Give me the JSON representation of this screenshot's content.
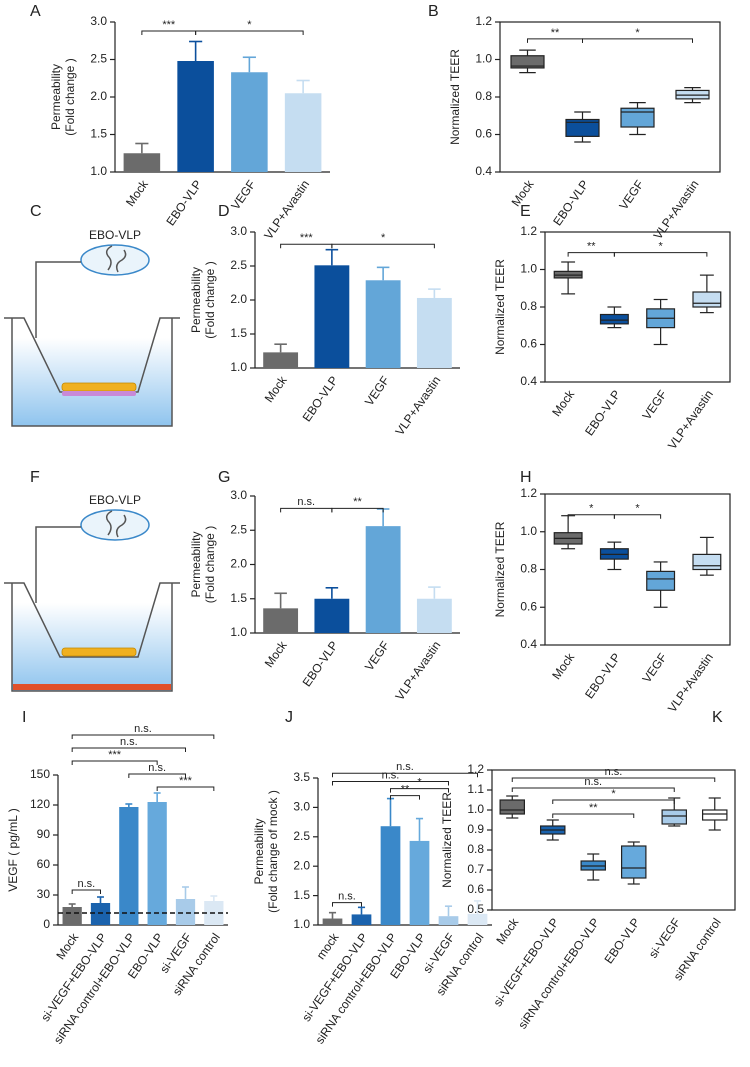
{
  "chart_data": [
    {
      "type": "bar",
      "panel": "A",
      "ylabel": [
        "Permeability",
        "(Fold change )"
      ],
      "categories": [
        "Mock",
        "EBO-VLP",
        "VEGF",
        "VLP+Avastin"
      ],
      "values": [
        1.25,
        2.48,
        2.33,
        2.05
      ],
      "errors": [
        0.13,
        0.26,
        0.2,
        0.17
      ],
      "colors": [
        "#6b6b6b",
        "#0b4f9c",
        "#63a6d8",
        "#c5ddf1"
      ],
      "ylim": [
        1,
        3
      ],
      "yticks": [
        {
          "value": 1,
          "label": "1.0"
        },
        1.5,
        {
          "value": 2,
          "label": "2.0"
        },
        2.5,
        {
          "value": 3,
          "label": "3.0"
        }
      ],
      "annotations": [
        {
          "from": "Mock",
          "to": "EBO-VLP",
          "y": 2.88,
          "text": "***"
        },
        {
          "from": "EBO-VLP",
          "to": "VLP+Avastin",
          "y": 2.88,
          "text": "*"
        }
      ]
    },
    {
      "type": "box",
      "panel": "B",
      "ylabel": "Normalized TEER",
      "categories": [
        "Mock",
        "EBO-VLP",
        "VEGF",
        "VLP+Avastin"
      ],
      "boxes": [
        {
          "min": 0.93,
          "q1": 0.955,
          "median": 0.965,
          "q3": 1.02,
          "max": 1.05
        },
        {
          "min": 0.56,
          "q1": 0.59,
          "median": 0.665,
          "q3": 0.68,
          "max": 0.72
        },
        {
          "min": 0.6,
          "q1": 0.64,
          "median": 0.72,
          "q3": 0.74,
          "max": 0.77
        },
        {
          "min": 0.77,
          "q1": 0.79,
          "median": 0.81,
          "q3": 0.835,
          "max": 0.85
        }
      ],
      "colors": [
        "#6b6b6b",
        "#0b4f9c",
        "#63a6d8",
        "#c5ddf1"
      ],
      "ylim": [
        0.4,
        1.2
      ],
      "yticks": [
        0.4,
        0.6,
        0.8,
        {
          "value": 1,
          "label": "1.0"
        },
        1.2
      ],
      "annotations": [
        {
          "from": "Mock",
          "to": "EBO-VLP",
          "y": 1.11,
          "text": "**"
        },
        {
          "from": "EBO-VLP",
          "to": "VLP+Avastin",
          "y": 1.11,
          "text": "*"
        }
      ]
    },
    {
      "type": "bar",
      "panel": "D",
      "ylabel": [
        "Permeability",
        "(Fold change )"
      ],
      "categories": [
        "Mock",
        "EBO-VLP",
        "VEGF",
        "VLP+Avastin"
      ],
      "values": [
        1.23,
        2.51,
        2.29,
        2.03
      ],
      "errors": [
        0.12,
        0.23,
        0.19,
        0.13
      ],
      "colors": [
        "#6b6b6b",
        "#0b4f9c",
        "#63a6d8",
        "#c5ddf1"
      ],
      "ylim": [
        1,
        3
      ],
      "yticks": [
        {
          "value": 1,
          "label": "1.0"
        },
        1.5,
        {
          "value": 2,
          "label": "2.0"
        },
        2.5,
        {
          "value": 3,
          "label": "3.0"
        }
      ],
      "annotations": [
        {
          "from": "Mock",
          "to": "EBO-VLP",
          "y": 2.82,
          "text": "***"
        },
        {
          "from": "EBO-VLP",
          "to": "VLP+Avastin",
          "y": 2.82,
          "text": "*"
        }
      ]
    },
    {
      "type": "box",
      "panel": "E",
      "ylabel": "Normalized TEER",
      "categories": [
        "Mock",
        "EBO-VLP",
        "VEGF",
        "VLP+Avastin"
      ],
      "boxes": [
        {
          "min": 0.87,
          "q1": 0.955,
          "median": 0.97,
          "q3": 0.99,
          "max": 1.04
        },
        {
          "min": 0.69,
          "q1": 0.71,
          "median": 0.73,
          "q3": 0.76,
          "max": 0.8
        },
        {
          "min": 0.6,
          "q1": 0.69,
          "median": 0.74,
          "q3": 0.79,
          "max": 0.84
        },
        {
          "min": 0.77,
          "q1": 0.8,
          "median": 0.82,
          "q3": 0.88,
          "max": 0.97
        }
      ],
      "colors": [
        "#6b6b6b",
        "#0b4f9c",
        "#63a6d8",
        "#c5ddf1"
      ],
      "ylim": [
        0.4,
        1.2
      ],
      "yticks": [
        0.4,
        0.6,
        0.8,
        {
          "value": 1,
          "label": "1.0"
        },
        1.2
      ],
      "annotations": [
        {
          "from": "Mock",
          "to": "EBO-VLP",
          "y": 1.09,
          "text": "**"
        },
        {
          "from": "EBO-VLP",
          "to": "VLP+Avastin",
          "y": 1.09,
          "text": "*"
        }
      ]
    },
    {
      "type": "bar",
      "panel": "G",
      "ylabel": [
        "Permeability",
        "(Fold change )"
      ],
      "categories": [
        "Mock",
        "EBO-VLP",
        "VEGF",
        "VLP+Avastin"
      ],
      "values": [
        1.36,
        1.5,
        2.56,
        1.5
      ],
      "errors": [
        0.22,
        0.16,
        0.25,
        0.17
      ],
      "colors": [
        "#6b6b6b",
        "#0b4f9c",
        "#63a6d8",
        "#c5ddf1"
      ],
      "ylim": [
        1,
        3
      ],
      "yticks": [
        {
          "value": 1,
          "label": "1.0"
        },
        1.5,
        {
          "value": 2,
          "label": "2.0"
        },
        2.5,
        {
          "value": 3,
          "label": "3.0"
        }
      ],
      "annotations": [
        {
          "from": "Mock",
          "to": "EBO-VLP",
          "y": 2.82,
          "text": "n.s."
        },
        {
          "from": "EBO-VLP",
          "to": "VEGF",
          "y": 2.82,
          "text": "**"
        }
      ]
    },
    {
      "type": "box",
      "panel": "H",
      "ylabel": "Normalized TEER",
      "categories": [
        "Mock",
        "EBO-VLP",
        "VEGF",
        "VLP+Avastin"
      ],
      "boxes": [
        {
          "min": 0.91,
          "q1": 0.935,
          "median": 0.965,
          "q3": 0.995,
          "max": 1.085
        },
        {
          "min": 0.8,
          "q1": 0.855,
          "median": 0.88,
          "q3": 0.91,
          "max": 0.945
        },
        {
          "min": 0.6,
          "q1": 0.69,
          "median": 0.75,
          "q3": 0.79,
          "max": 0.84
        },
        {
          "min": 0.77,
          "q1": 0.8,
          "median": 0.82,
          "q3": 0.88,
          "max": 0.97
        }
      ],
      "colors": [
        "#6b6b6b",
        "#0b4f9c",
        "#63a6d8",
        "#c5ddf1"
      ],
      "ylim": [
        0.4,
        1.2
      ],
      "yticks": [
        0.4,
        0.6,
        0.8,
        {
          "value": 1,
          "label": "1.0"
        },
        1.2
      ],
      "annotations": [
        {
          "from": "Mock",
          "to": "EBO-VLP",
          "y": 1.09,
          "text": "*"
        },
        {
          "from": "EBO-VLP",
          "to": "VEGF",
          "y": 1.09,
          "text": "*"
        }
      ]
    },
    {
      "type": "bar",
      "panel": "I",
      "ylabel": "VEGF ( pg/mL )",
      "categories": [
        "Mock",
        "si-VEGF+EBO-VLP",
        "siRNA control+EBO-VLP",
        "EBO-VLP",
        "si-VEGF",
        "siRNA control"
      ],
      "values": [
        18,
        22,
        118,
        123,
        26,
        24
      ],
      "errors": [
        3,
        6,
        3,
        9,
        12,
        5
      ],
      "colors": [
        "#6b6b6b",
        "#1a62ad",
        "#3a88c9",
        "#66a9dc",
        "#a8cbe9",
        "#dbe8f4"
      ],
      "ylim": [
        0,
        150
      ],
      "yticks": [
        0,
        30,
        60,
        90,
        120,
        150
      ],
      "hline": 12,
      "annotations": [
        {
          "from": "Mock",
          "to": "siRNA control",
          "y": 190,
          "text": "n.s."
        },
        {
          "from": "Mock",
          "to": "si-VEGF",
          "y": 177,
          "text": "n.s."
        },
        {
          "from": "Mock",
          "to": "EBO-VLP",
          "y": 164,
          "text": "***"
        },
        {
          "from": "siRNA control+EBO-VLP",
          "to": "si-VEGF",
          "y": 151,
          "text": "n.s."
        },
        {
          "from": "EBO-VLP",
          "to": "siRNA control",
          "y": 138,
          "text": "***"
        },
        {
          "from": "Mock",
          "to": "si-VEGF+EBO-VLP",
          "y": 35,
          "text": "n.s."
        }
      ]
    },
    {
      "type": "bar",
      "panel": "J",
      "ylabel": [
        "Permeability",
        "(Fold change of mock )"
      ],
      "categories": [
        "mock",
        "si-VEGF+EBO-VLP",
        "siRNA control+EBO-VLP",
        "EBO-VLP",
        "si-VEGF",
        "siRNA control"
      ],
      "values": [
        1.11,
        1.18,
        2.68,
        2.43,
        1.15,
        1.19
      ],
      "errors": [
        0.1,
        0.12,
        0.47,
        0.38,
        0.17,
        0.22
      ],
      "colors": [
        "#6b6b6b",
        "#1a62ad",
        "#3a88c9",
        "#66a9dc",
        "#a8cbe9",
        "#dbe8f4"
      ],
      "ylim": [
        1,
        3.5
      ],
      "yticks": [
        {
          "value": 1,
          "label": "1.0"
        },
        1.5,
        {
          "value": 2,
          "label": "2.0"
        },
        2.5,
        {
          "value": 3,
          "label": "3.0"
        },
        3.5
      ],
      "annotations": [
        {
          "from": "mock",
          "to": "siRNA control",
          "y": 3.58,
          "text": "n.s."
        },
        {
          "from": "mock",
          "to": "si-VEGF",
          "y": 3.44,
          "text": "n.s."
        },
        {
          "from": "siRNA control+EBO-VLP",
          "to": "si-VEGF",
          "y": 3.32,
          "text": "*"
        },
        {
          "from": "siRNA control+EBO-VLP",
          "to": "EBO-VLP",
          "y": 3.2,
          "text": "**"
        },
        {
          "from": "mock",
          "to": "si-VEGF+EBO-VLP",
          "y": 1.38,
          "text": "n.s."
        }
      ]
    },
    {
      "type": "box",
      "panel": "K",
      "ylabel": "Normalized TEER",
      "categories": [
        "Mock",
        "si-VEGF+EBO-VLP",
        "siRNA control+EBO-VLP",
        "EBO-VLP",
        "si-VEGF",
        "siRNA control"
      ],
      "boxes": [
        {
          "min": 0.96,
          "q1": 0.98,
          "median": 1.0,
          "q3": 1.05,
          "max": 1.07
        },
        {
          "min": 0.85,
          "q1": 0.88,
          "median": 0.9,
          "q3": 0.92,
          "max": 0.95
        },
        {
          "min": 0.65,
          "q1": 0.7,
          "median": 0.72,
          "q3": 0.745,
          "max": 0.78
        },
        {
          "min": 0.63,
          "q1": 0.66,
          "median": 0.71,
          "q3": 0.82,
          "max": 0.84
        },
        {
          "min": 0.92,
          "q1": 0.93,
          "median": 0.97,
          "q3": 1.0,
          "max": 1.06
        },
        {
          "min": 0.9,
          "q1": 0.95,
          "median": 0.98,
          "q3": 1.0,
          "max": 1.06
        }
      ],
      "colors": [
        "#6b6b6b",
        "#1a62ad",
        "#3a88c9",
        "#66a9dc",
        "#a8cbe9",
        "#ffffff"
      ],
      "ylim": [
        0.5,
        1.2
      ],
      "yticks": [
        0.5,
        0.6,
        0.7,
        0.8,
        0.9,
        {
          "value": 1,
          "label": "1.0"
        },
        1.1,
        1.2
      ],
      "annotations": [
        {
          "from": "Mock",
          "to": "siRNA control",
          "y": 1.16,
          "text": "n.s."
        },
        {
          "from": "Mock",
          "to": "si-VEGF",
          "y": 1.11,
          "text": "n.s."
        },
        {
          "from": "si-VEGF+EBO-VLP",
          "to": "si-VEGF",
          "y": 1.05,
          "text": "*"
        },
        {
          "from": "si-VEGF+EBO-VLP",
          "to": "EBO-VLP",
          "y": 0.98,
          "text": "**"
        }
      ]
    }
  ],
  "diagrams": [
    {
      "panel": "C",
      "label": "EBO-VLP"
    },
    {
      "panel": "F",
      "label": "EBO-VLP"
    }
  ]
}
